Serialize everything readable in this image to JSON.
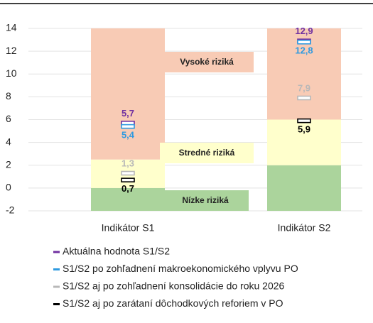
{
  "chart_data": {
    "type": "risk-zones",
    "categories": [
      "Indikátor S1",
      "Indikátor S2"
    ],
    "ylim": [
      -2,
      14
    ],
    "yticks": [
      -2,
      0,
      2,
      4,
      6,
      8,
      10,
      12,
      14
    ],
    "grid": true,
    "zones": [
      {
        "name": "Nízke riziká",
        "color": "#abd49c",
        "values": [
          2,
          4
        ]
      },
      {
        "name": "Stredné riziká",
        "color": "#ffffcc",
        "values": [
          2.5,
          4
        ]
      },
      {
        "name": "Vysoké riziká",
        "color": "#f8cbb5",
        "values": [
          11.5,
          8
        ]
      }
    ],
    "series": [
      {
        "name": "Aktuálna hodnota S1/S2",
        "color": "#7030a0",
        "values": [
          5.7,
          12.9
        ],
        "value_labels": [
          "5,7",
          "12,9"
        ],
        "label_position": "above"
      },
      {
        "name": "S1/S2 po zohľadnení makroekonomického vplyvu PO",
        "color": "#2f9ae0",
        "values": [
          5.4,
          12.8
        ],
        "value_labels": [
          "5,4",
          "12,8"
        ],
        "label_position": "below"
      },
      {
        "name": "S1/S2 aj po zohľadnení konsolidácie do roku 2026",
        "color": "#b8b8b8",
        "values": [
          1.3,
          7.9
        ],
        "value_labels": [
          "1,3",
          "7,9"
        ],
        "label_position": "above"
      },
      {
        "name": "S1/S2 aj po zarátaní dôchodkových reforiem v PO",
        "color": "#000000",
        "values": [
          0.7,
          5.9
        ],
        "value_labels": [
          "0,7",
          "5,9"
        ],
        "label_position": "below"
      }
    ]
  }
}
